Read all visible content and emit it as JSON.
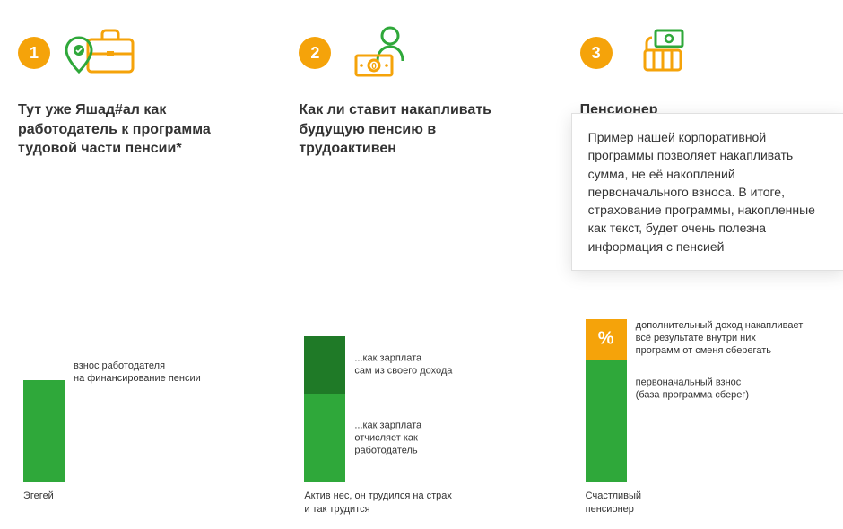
{
  "colors": {
    "orange": "#f5a30a",
    "green": "#2fa83a",
    "green_dark": "#1f7a27",
    "text": "#333333",
    "white": "#ffffff"
  },
  "steps": [
    {
      "number": "1",
      "icon": "briefcase-pin",
      "heading": "Тут уже Яшад#ал как\nработодатель к программа\nтудовой части пенсии*",
      "bar": {
        "segments": [
          {
            "color": "#2fa83a",
            "height_pct": 60,
            "label": "взнос работодателя\nна финансирование пенсии"
          }
        ],
        "x_label": "Эгегей"
      }
    },
    {
      "number": "2",
      "icon": "person-cash",
      "heading": "Как ли ставит накапливать\nбудущую пенсию в\nтрудоактивен",
      "bar": {
        "segments": [
          {
            "color": "#1f7a27",
            "height_pct": 34,
            "label": "...как зарплата\nсам из своего дохода"
          },
          {
            "color": "#2fa83a",
            "height_pct": 52,
            "label": "...как зарплата\nотчисляет как\nработодатель"
          }
        ],
        "x_label": "Актив нес, он трудился на страх\nи так трудится"
      }
    },
    {
      "number": "3",
      "icon": "hand-money",
      "heading": "Пенсионер",
      "tooltip": "Пример нашей корпоративной программы позволяет накапливать сумма, не её накоплений первоначального взноса. В итоге, страхование программы, накопленные как текст, будет очень полезна информация с пенсией",
      "bar": {
        "segments": [
          {
            "color": "#f5a30a",
            "height_pct": 24,
            "label": "дополнительный доход накапливает\nвсё результате внутри них\nпрограмм от сменя сберегать",
            "glyph": "%"
          },
          {
            "color": "#2fa83a",
            "height_pct": 72,
            "label": "первоначальный взнос\n(база программа сберег)"
          }
        ],
        "x_label": "Счастливый\nпенсионер"
      }
    }
  ]
}
